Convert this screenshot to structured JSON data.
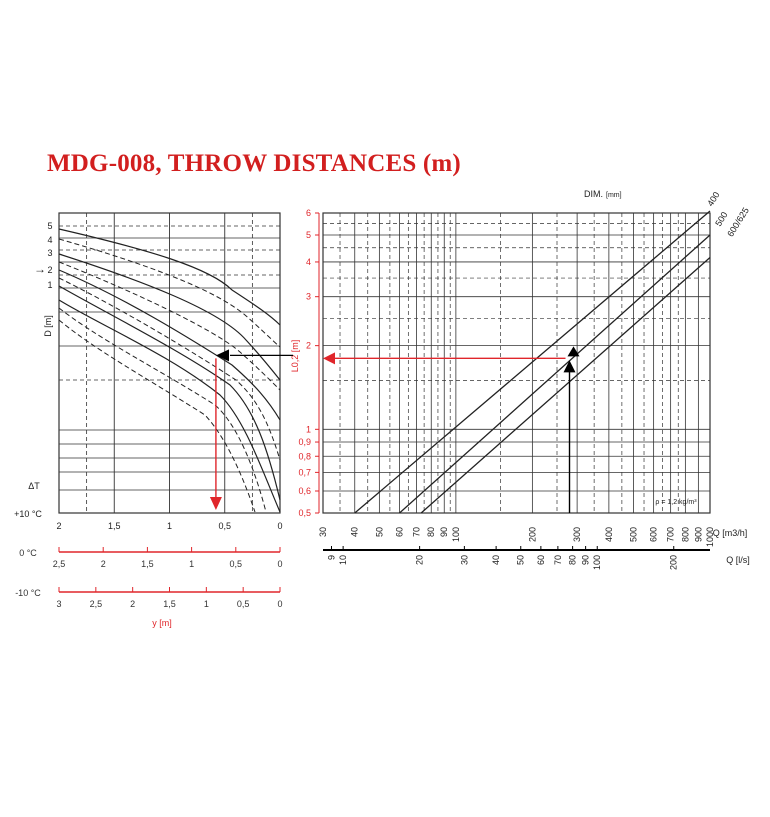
{
  "title": "MDG-008, THROW DISTANCES (m)",
  "colors": {
    "accent": "#e0262b",
    "curve": "#222222",
    "grid": "#333333"
  },
  "chart_data": [
    {
      "type": "line",
      "id": "left-chart",
      "ylabel": "D [m]",
      "y_curve_labels": [
        "5",
        "4",
        "3",
        "2",
        "1"
      ],
      "marker_label": "2",
      "dt_label": "ΔT",
      "x_scales": [
        {
          "name": "+10 °C",
          "ticks": [
            "2",
            "1,5",
            "1",
            "0,5",
            "0"
          ],
          "values": [
            2,
            1.5,
            1,
            0.5,
            0
          ]
        },
        {
          "name": "0 °C",
          "ticks": [
            "2,5",
            "2",
            "1,5",
            "1",
            "0,5",
            "0"
          ],
          "values": [
            2.5,
            2,
            1.5,
            1,
            0.5,
            0
          ]
        },
        {
          "name": "-10 °C",
          "ticks": [
            "3",
            "2,5",
            "2",
            "1,5",
            "1",
            "0,5",
            "0"
          ],
          "values": [
            3,
            2.5,
            2,
            1.5,
            1,
            0.5,
            0
          ]
        }
      ],
      "xlabel": "y [m]",
      "xlim": [
        2,
        0
      ]
    },
    {
      "type": "line",
      "id": "right-chart",
      "log_scale": true,
      "ylabel": "L0,2 [m]",
      "yticks": [
        "6",
        "5",
        "4",
        "3",
        "2",
        "1",
        "0,9",
        "0,8",
        "0,7",
        "0,6",
        "0,5"
      ],
      "ylim": [
        0.5,
        6
      ],
      "x_top_label": "Q [m3/h]",
      "x_top_ticks": [
        "30",
        "40",
        "50",
        "60",
        "70",
        "80",
        "90",
        "100",
        "200",
        "300",
        "400",
        "500",
        "600",
        "700",
        "800",
        "900",
        "1000"
      ],
      "x_bottom_label": "Q [l/s]",
      "x_bottom_ticks": [
        "9",
        "10",
        "20",
        "30",
        "40",
        "50",
        "60",
        "70",
        "80",
        "90",
        "100",
        "200"
      ],
      "xlim": [
        30,
        1000
      ],
      "dim_label": "DIM.",
      "dim_unit": "[mm]",
      "series": [
        {
          "name": "400",
          "points": [
            [
              40,
              0.5
            ],
            [
              1000,
              6.1
            ]
          ]
        },
        {
          "name": "500",
          "points": [
            [
              60,
              0.5
            ],
            [
              1000,
              5.0
            ]
          ]
        },
        {
          "name": "600/625",
          "points": [
            [
              73,
              0.5
            ],
            [
              1000,
              4.15
            ]
          ]
        }
      ],
      "density_note": "ρ = 1,2 kg/m³",
      "example": {
        "q_m3h": 280,
        "l02": 1.8
      }
    }
  ]
}
